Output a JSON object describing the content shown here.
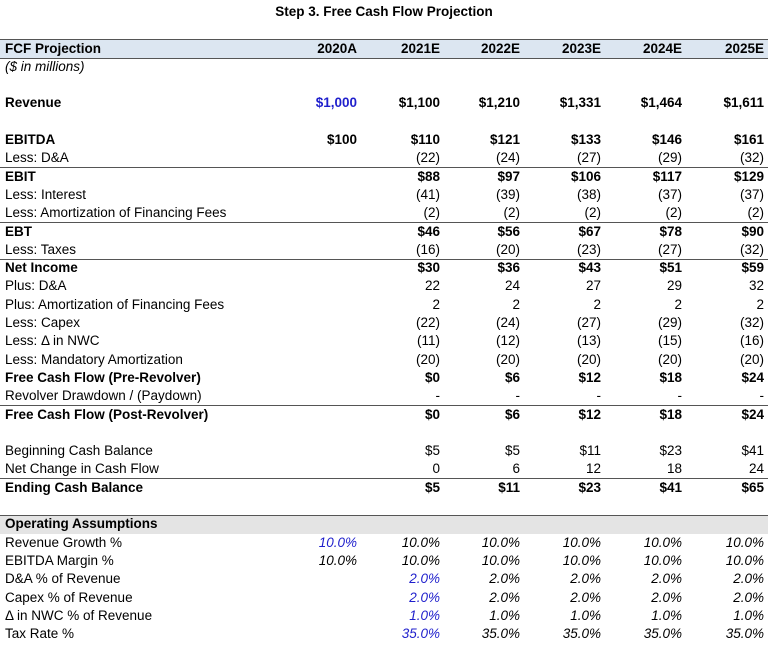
{
  "title": "Step 3. Free Cash Flow Projection",
  "table": {
    "columns": [
      "FCF Projection",
      "2020A",
      "2021E",
      "2022E",
      "2023E",
      "2024E",
      "2025E"
    ],
    "units": "($ in millions)",
    "rows": [
      {
        "label": "Revenue",
        "values": [
          "$1,000",
          "$1,100",
          "$1,210",
          "$1,331",
          "$1,464",
          "$1,611"
        ]
      },
      {
        "label": "EBITDA",
        "values": [
          "$100",
          "$110",
          "$121",
          "$133",
          "$146",
          "$161"
        ]
      },
      {
        "label": "Less: D&A",
        "values": [
          null,
          "(22)",
          "(24)",
          "(27)",
          "(29)",
          "(32)"
        ]
      },
      {
        "label": "EBIT",
        "values": [
          null,
          "$88",
          "$97",
          "$106",
          "$117",
          "$129"
        ]
      },
      {
        "label": "Less: Interest",
        "values": [
          null,
          "(41)",
          "(39)",
          "(38)",
          "(37)",
          "(37)"
        ]
      },
      {
        "label": "Less: Amortization of Financing Fees",
        "values": [
          null,
          "(2)",
          "(2)",
          "(2)",
          "(2)",
          "(2)"
        ]
      },
      {
        "label": "EBT",
        "values": [
          null,
          "$46",
          "$56",
          "$67",
          "$78",
          "$90"
        ]
      },
      {
        "label": "Less: Taxes",
        "values": [
          null,
          "(16)",
          "(20)",
          "(23)",
          "(27)",
          "(32)"
        ]
      },
      {
        "label": "Net Income",
        "values": [
          null,
          "$30",
          "$36",
          "$43",
          "$51",
          "$59"
        ]
      },
      {
        "label": "Plus: D&A",
        "values": [
          null,
          "22",
          "24",
          "27",
          "29",
          "32"
        ]
      },
      {
        "label": "Plus: Amortization of Financing Fees",
        "values": [
          null,
          "2",
          "2",
          "2",
          "2",
          "2"
        ]
      },
      {
        "label": "Less: Capex",
        "values": [
          null,
          "(22)",
          "(24)",
          "(27)",
          "(29)",
          "(32)"
        ]
      },
      {
        "label": "Less: Δ in NWC",
        "values": [
          null,
          "(11)",
          "(12)",
          "(13)",
          "(15)",
          "(16)"
        ]
      },
      {
        "label": "Less: Mandatory Amortization",
        "values": [
          null,
          "(20)",
          "(20)",
          "(20)",
          "(20)",
          "(20)"
        ]
      },
      {
        "label": "Free Cash Flow (Pre-Revolver)",
        "values": [
          null,
          "$0",
          "$6",
          "$12",
          "$18",
          "$24"
        ]
      },
      {
        "label": "Revolver Drawdown / (Paydown)",
        "values": [
          null,
          "-",
          "-",
          "-",
          "-",
          "-"
        ]
      },
      {
        "label": "Free Cash Flow (Post-Revolver)",
        "values": [
          null,
          "$0",
          "$6",
          "$12",
          "$18",
          "$24"
        ]
      },
      {
        "label": "Beginning Cash Balance",
        "values": [
          null,
          "$5",
          "$5",
          "$11",
          "$23",
          "$41"
        ]
      },
      {
        "label": "Net Change in Cash Flow",
        "values": [
          null,
          "0",
          "6",
          "12",
          "18",
          "24"
        ]
      },
      {
        "label": "Ending Cash Balance",
        "values": [
          null,
          "$5",
          "$11",
          "$23",
          "$41",
          "$65"
        ]
      }
    ]
  },
  "assumptions": {
    "title": "Operating Assumptions",
    "rows": [
      {
        "label": "Revenue Growth %",
        "values": [
          "10.0%",
          "10.0%",
          "10.0%",
          "10.0%",
          "10.0%",
          "10.0%"
        ]
      },
      {
        "label": "EBITDA Margin %",
        "values": [
          "10.0%",
          "10.0%",
          "10.0%",
          "10.0%",
          "10.0%",
          "10.0%"
        ]
      },
      {
        "label": "D&A % of Revenue",
        "values": [
          null,
          "2.0%",
          "2.0%",
          "2.0%",
          "2.0%",
          "2.0%"
        ]
      },
      {
        "label": "Capex % of Revenue",
        "values": [
          null,
          "2.0%",
          "2.0%",
          "2.0%",
          "2.0%",
          "2.0%"
        ]
      },
      {
        "label": "Δ in NWC % of Revenue",
        "values": [
          null,
          "1.0%",
          "1.0%",
          "1.0%",
          "1.0%",
          "1.0%"
        ]
      },
      {
        "label": "Tax Rate %",
        "values": [
          null,
          "35.0%",
          "35.0%",
          "35.0%",
          "35.0%",
          "35.0%"
        ]
      }
    ]
  }
}
